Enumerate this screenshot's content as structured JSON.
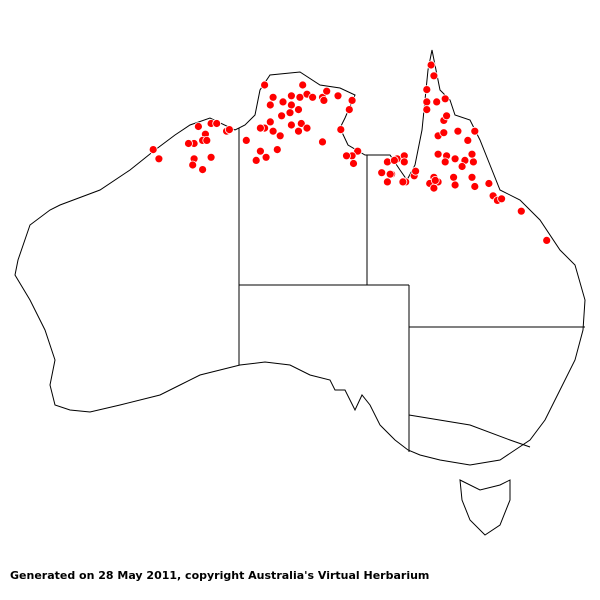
{
  "footer": {
    "text": "Generated on 28 May 2011, copyright Australia's Virtual Herbarium"
  },
  "map": {
    "region": "Australia",
    "projection": "equirectangular",
    "colors": {
      "background": "#ffffff",
      "outline": "#000000",
      "point_fill": "#ff0000",
      "point_stroke": "#ffffff"
    },
    "points_lonlat": [
      [
        130.9,
        -13.3
      ],
      [
        131.5,
        -14.1
      ],
      [
        132.2,
        -14.4
      ],
      [
        132.8,
        -14.0
      ],
      [
        133.6,
        -13.3
      ],
      [
        133.4,
        -14.1
      ],
      [
        133.9,
        -13.9
      ],
      [
        132.8,
        -14.6
      ],
      [
        133.3,
        -14.9
      ],
      [
        132.7,
        -15.1
      ],
      [
        133.5,
        -15.8
      ],
      [
        132.1,
        -15.3
      ],
      [
        131.3,
        -14.6
      ],
      [
        130.9,
        -16.1
      ],
      [
        131.5,
        -16.3
      ],
      [
        131.3,
        -15.7
      ],
      [
        130.6,
        -16.1
      ],
      [
        132.0,
        -16.6
      ],
      [
        132.8,
        -15.9
      ],
      [
        133.3,
        -16.3
      ],
      [
        133.9,
        -16.1
      ],
      [
        134.3,
        -14.1
      ],
      [
        135.0,
        -14.1
      ],
      [
        135.3,
        -13.7
      ],
      [
        135.1,
        -14.3
      ],
      [
        136.1,
        -14.0
      ],
      [
        137.1,
        -14.3
      ],
      [
        136.9,
        -14.9
      ],
      [
        136.3,
        -16.2
      ],
      [
        135.0,
        -17.0
      ],
      [
        129.6,
        -16.9
      ],
      [
        130.6,
        -17.6
      ],
      [
        130.3,
        -18.2
      ],
      [
        131.8,
        -17.5
      ],
      [
        131.0,
        -18.0
      ],
      [
        127.1,
        -15.8
      ],
      [
        127.5,
        -15.8
      ],
      [
        126.2,
        -16.0
      ],
      [
        126.7,
        -16.5
      ],
      [
        126.5,
        -16.9
      ],
      [
        126.8,
        -16.9
      ],
      [
        125.9,
        -17.1
      ],
      [
        125.5,
        -17.1
      ],
      [
        128.2,
        -16.3
      ],
      [
        123.4,
        -18.1
      ],
      [
        123.0,
        -17.5
      ],
      [
        125.9,
        -18.1
      ],
      [
        125.8,
        -18.5
      ],
      [
        126.5,
        -18.8
      ],
      [
        127.1,
        -18.0
      ],
      [
        128.4,
        -16.2
      ],
      [
        137.5,
        -17.6
      ],
      [
        137.1,
        -17.9
      ],
      [
        136.7,
        -17.9
      ],
      [
        137.2,
        -18.4
      ],
      [
        139.6,
        -18.3
      ],
      [
        139.2,
        -19.0
      ],
      [
        139.9,
        -19.1
      ],
      [
        140.3,
        -18.1
      ],
      [
        140.8,
        -17.9
      ],
      [
        140.1,
        -18.2
      ],
      [
        139.6,
        -19.6
      ],
      [
        142.7,
        -12.0
      ],
      [
        142.9,
        -12.7
      ],
      [
        142.4,
        -13.6
      ],
      [
        142.4,
        -14.4
      ],
      [
        143.1,
        -14.4
      ],
      [
        142.4,
        -14.9
      ],
      [
        143.7,
        -14.2
      ],
      [
        143.6,
        -15.6
      ],
      [
        143.8,
        -15.3
      ],
      [
        143.2,
        -16.6
      ],
      [
        143.6,
        -16.4
      ],
      [
        144.6,
        -16.3
      ],
      [
        145.3,
        -16.9
      ],
      [
        145.8,
        -16.3
      ],
      [
        145.7,
        -18.3
      ],
      [
        145.1,
        -18.2
      ],
      [
        145.6,
        -17.8
      ],
      [
        143.2,
        -17.8
      ],
      [
        143.8,
        -17.9
      ],
      [
        143.7,
        -18.3
      ],
      [
        144.4,
        -18.1
      ],
      [
        144.9,
        -18.6
      ],
      [
        143.2,
        -19.6
      ],
      [
        142.9,
        -19.3
      ],
      [
        142.6,
        -19.7
      ],
      [
        142.9,
        -20.0
      ],
      [
        143.0,
        -19.5
      ],
      [
        144.3,
        -19.3
      ],
      [
        144.4,
        -19.8
      ],
      [
        145.6,
        -19.3
      ],
      [
        145.8,
        -19.9
      ],
      [
        140.9,
        -19.6
      ],
      [
        141.5,
        -19.2
      ],
      [
        141.6,
        -18.9
      ],
      [
        140.7,
        -19.6
      ],
      [
        146.8,
        -19.7
      ],
      [
        147.1,
        -20.5
      ],
      [
        147.4,
        -20.8
      ],
      [
        147.7,
        -20.7
      ],
      [
        149.1,
        -21.5
      ],
      [
        150.9,
        -23.4
      ],
      [
        140.8,
        -18.3
      ],
      [
        139.8,
        -19.1
      ]
    ]
  }
}
